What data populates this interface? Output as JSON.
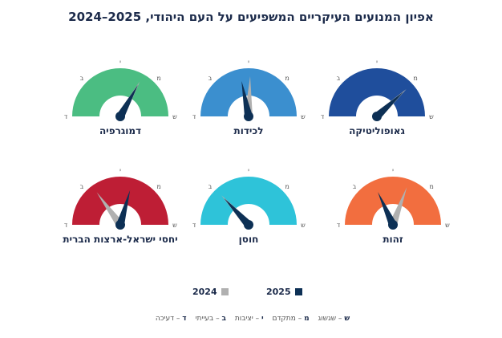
{
  "title": "אפיון המנועים העיקריים המשפיעים על העם היהודי, 2025–2024",
  "chart_data": {
    "type": "gauge",
    "title": "אפיון המנועים העיקריים המשפיעים על העם היהודי, 2025–2024",
    "scale": [
      "ש",
      "מ",
      "י",
      "ב",
      "ד"
    ],
    "series": [
      {
        "name": "2025",
        "color": "#0d3055"
      },
      {
        "name": "2024",
        "color": "#b0b0b0"
      }
    ],
    "gauges": [
      {
        "label": "גאופוליטיקה",
        "color": "#1f4e9c",
        "value_2025": 0.95,
        "value_2024": 0.95
      },
      {
        "label": "לכידות",
        "color": "#3b8fcf",
        "value_2025": 2.25,
        "value_2024": 1.95
      },
      {
        "label": "דמוגרפיה",
        "color": "#4bbd82",
        "value_2025": 1.35,
        "value_2024": 1.35
      },
      {
        "label": "זהות",
        "color": "#f26e3f",
        "value_2025": 2.55,
        "value_2024": 1.55
      },
      {
        "label": "חוסן",
        "color": "#2ec3d9",
        "value_2025": 2.95,
        "value_2024": 2.95
      },
      {
        "label": "יחסי ישראל-ארצות הברית",
        "color": "#be1e35",
        "value_2025": 1.65,
        "value_2024": 2.8
      }
    ]
  },
  "legend": [
    {
      "label": "2025",
      "color": "#0d3055"
    },
    {
      "label": "2024",
      "color": "#b0b0b0"
    }
  ],
  "key": [
    {
      "abbr": "ש",
      "text": " – שגשוג"
    },
    {
      "abbr": "מ",
      "text": " – מתקדם"
    },
    {
      "abbr": "י",
      "text": " – יציבות"
    },
    {
      "abbr": "ב",
      "text": " – בעייתי"
    },
    {
      "abbr": "ד",
      "text": " – דעיכה"
    }
  ]
}
